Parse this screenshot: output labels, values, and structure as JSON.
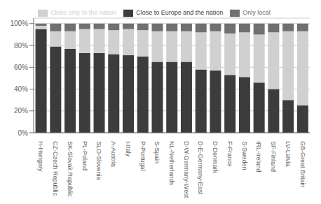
{
  "chart_data": {
    "type": "bar",
    "stacked": true,
    "categories": [
      "H-Hungary",
      "CZ-Czech Republic",
      "SK-Slovak Republic",
      "PL-Poland",
      "SLO-Slovenia",
      "A-Austria",
      "I-Italy",
      "P-Portugal",
      "S-Spain",
      "NL-Netherlands",
      "D-W-Germany-West",
      "D-E-Germany-East",
      "D-Denmark",
      "F-France",
      "S-Sweden",
      "IRL-Ireland",
      "SF-Finland",
      "LV-Latvia",
      "GB-Great Britain"
    ],
    "series": [
      {
        "name": "Close to Europe and the nation",
        "color": "#3c3c3c",
        "values": [
          95,
          79,
          77,
          73,
          73,
          72,
          71,
          70,
          65,
          65,
          65,
          58,
          57,
          53,
          51,
          46,
          40,
          30,
          25
        ]
      },
      {
        "name": "Close only to the nation",
        "color": "#d0d0d0",
        "values": [
          3,
          14,
          16,
          22,
          22,
          22,
          24,
          24,
          28,
          28,
          28,
          34,
          36,
          38,
          41,
          44,
          52,
          63,
          68
        ]
      },
      {
        "name": "Only local",
        "color": "#707070",
        "values": [
          2,
          7,
          7,
          5,
          5,
          6,
          5,
          6,
          7,
          7,
          7,
          8,
          7,
          9,
          8,
          10,
          8,
          7,
          7
        ]
      }
    ],
    "ylim": [
      0,
      105
    ],
    "yticks": [
      {
        "value": 0,
        "label": "0%"
      },
      {
        "value": 20,
        "label": "20%"
      },
      {
        "value": 40,
        "label": "40%"
      },
      {
        "value": 60,
        "label": "60%"
      },
      {
        "value": 80,
        "label": "80%"
      },
      {
        "value": 100,
        "label": "100%"
      }
    ],
    "grid": true,
    "legend": "top"
  }
}
